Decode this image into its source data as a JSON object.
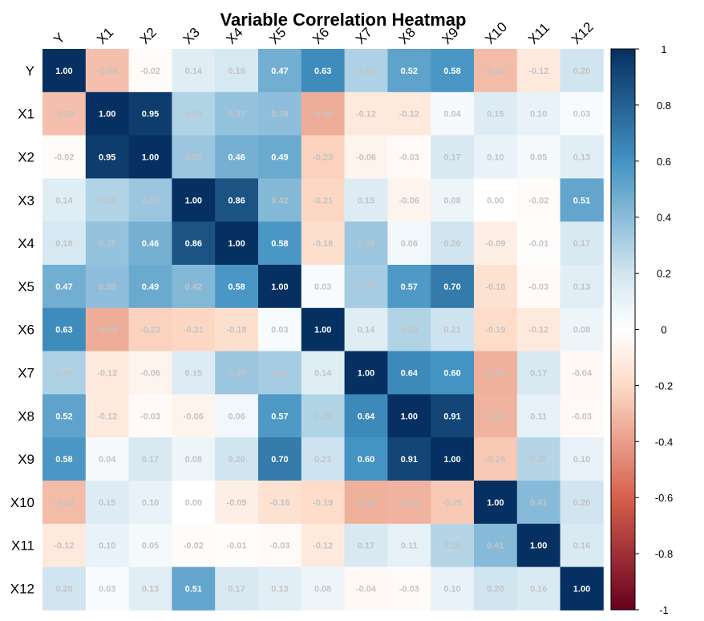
{
  "chart_data": {
    "type": "heatmap",
    "title": "Variable Correlation Heatmap",
    "variables": [
      "Y",
      "X1",
      "X2",
      "X3",
      "X4",
      "X5",
      "X6",
      "X7",
      "X8",
      "X9",
      "X10",
      "X11",
      "X12"
    ],
    "matrix": [
      [
        1.0,
        -0.29,
        -0.02,
        0.14,
        0.18,
        0.47,
        0.63,
        0.3,
        0.52,
        0.58,
        -0.3,
        -0.12,
        0.2
      ],
      [
        -0.29,
        1.0,
        0.95,
        0.29,
        0.37,
        0.39,
        -0.35,
        -0.12,
        -0.12,
        0.04,
        0.15,
        0.1,
        0.03
      ],
      [
        -0.02,
        0.95,
        1.0,
        0.35,
        0.46,
        0.49,
        -0.23,
        -0.06,
        -0.03,
        0.17,
        0.1,
        0.05,
        0.13
      ],
      [
        0.14,
        0.29,
        0.35,
        1.0,
        0.86,
        0.42,
        -0.21,
        0.15,
        -0.06,
        0.08,
        0.0,
        -0.02,
        0.51
      ],
      [
        0.18,
        0.37,
        0.46,
        0.86,
        1.0,
        0.58,
        -0.18,
        0.35,
        0.06,
        0.2,
        -0.09,
        -0.01,
        0.17
      ],
      [
        0.47,
        0.39,
        0.49,
        0.42,
        0.58,
        1.0,
        0.03,
        0.32,
        0.57,
        0.7,
        -0.16,
        -0.03,
        0.13
      ],
      [
        0.63,
        -0.35,
        -0.23,
        -0.21,
        -0.18,
        0.03,
        1.0,
        0.14,
        0.29,
        0.21,
        -0.19,
        -0.12,
        0.08
      ],
      [
        0.3,
        -0.12,
        -0.06,
        0.15,
        0.35,
        0.32,
        0.14,
        1.0,
        0.64,
        0.6,
        -0.34,
        0.17,
        -0.04
      ],
      [
        0.52,
        -0.12,
        -0.03,
        -0.06,
        0.06,
        0.57,
        0.29,
        0.64,
        1.0,
        0.91,
        -0.33,
        0.11,
        -0.03
      ],
      [
        0.58,
        0.04,
        0.17,
        0.08,
        0.2,
        0.7,
        0.21,
        0.6,
        0.91,
        1.0,
        -0.26,
        0.28,
        0.1
      ],
      [
        -0.3,
        0.15,
        0.1,
        0.0,
        -0.09,
        -0.16,
        -0.19,
        -0.34,
        -0.33,
        -0.26,
        1.0,
        0.41,
        0.2
      ],
      [
        -0.12,
        0.1,
        0.05,
        -0.02,
        -0.01,
        -0.03,
        -0.12,
        0.17,
        0.11,
        0.28,
        0.41,
        1.0,
        0.16
      ],
      [
        0.2,
        0.03,
        0.13,
        0.51,
        0.17,
        0.13,
        0.08,
        -0.04,
        -0.03,
        0.1,
        0.2,
        0.16,
        1.0
      ]
    ],
    "colorbar": {
      "min": -1,
      "max": 1,
      "ticks": [
        1,
        0.8,
        0.6,
        0.4,
        0.2,
        0,
        -0.2,
        -0.4,
        -0.6,
        -0.8,
        -1
      ],
      "tick_labels": [
        "1",
        "0.8",
        "0.6",
        "0.4",
        "0.2",
        "0",
        "-0.2",
        "-0.4",
        "-0.6",
        "-0.8",
        "-1"
      ]
    },
    "colors": {
      "neg_end": "#67001F",
      "neg_mid": "#D6604D",
      "neg_light": "#FDDBC7",
      "zero": "#FFFFFF",
      "pos_light": "#D1E5F0",
      "pos_mid": "#4393C3",
      "pos_end": "#053061"
    }
  }
}
